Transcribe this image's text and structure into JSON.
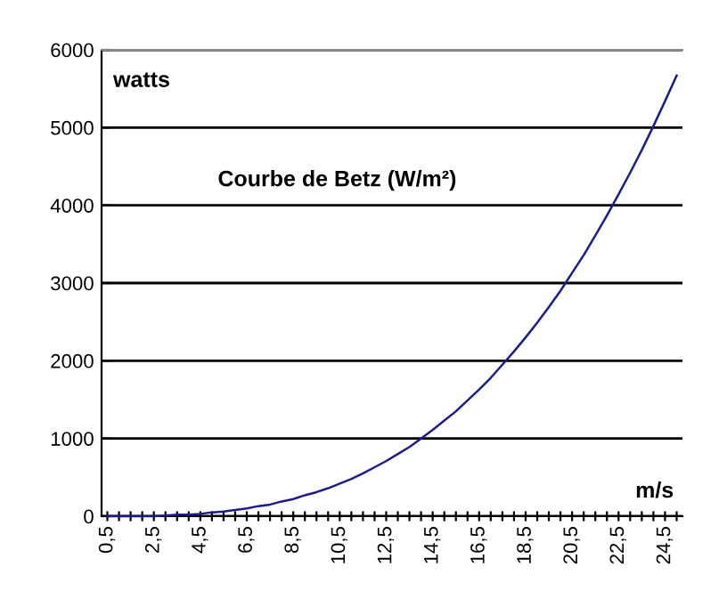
{
  "chart_data": {
    "type": "line",
    "title": "Courbe de Betz (W/m²)",
    "ylabel": "watts",
    "xlabel": "m/s",
    "categories": [
      "0,5",
      null,
      null,
      null,
      "2,5",
      null,
      null,
      null,
      "4,5",
      null,
      null,
      null,
      "6,5",
      null,
      null,
      null,
      "8,5",
      null,
      null,
      null,
      "10,5",
      null,
      null,
      null,
      "12,5",
      null,
      null,
      null,
      "14,5",
      null,
      null,
      null,
      "16,5",
      null,
      null,
      null,
      "18,5",
      null,
      null,
      null,
      "20,5",
      null,
      null,
      null,
      "22,5",
      null,
      null,
      null,
      "24,5",
      null
    ],
    "series": [
      {
        "color": "#1c1c8c",
        "values": [
          0,
          0,
          0,
          0,
          0,
          10,
          20,
          20,
          30,
          50,
          60,
          80,
          100,
          130,
          150,
          190,
          220,
          270,
          310,
          360,
          420,
          480,
          550,
          630,
          710,
          800,
          890,
          1000,
          1110,
          1230,
          1350,
          1490,
          1630,
          1780,
          1950,
          2120,
          2300,
          2490,
          2690,
          2900,
          3130,
          3360,
          3610,
          3870,
          4140,
          4420,
          4710,
          5020,
          5340,
          5670
        ]
      }
    ],
    "ylim": [
      0,
      6000
    ],
    "yticks": [
      0,
      1000,
      2000,
      3000,
      4000,
      5000,
      6000
    ],
    "grid": "y",
    "marker": "none",
    "line_style": "solid",
    "legend": false
  }
}
